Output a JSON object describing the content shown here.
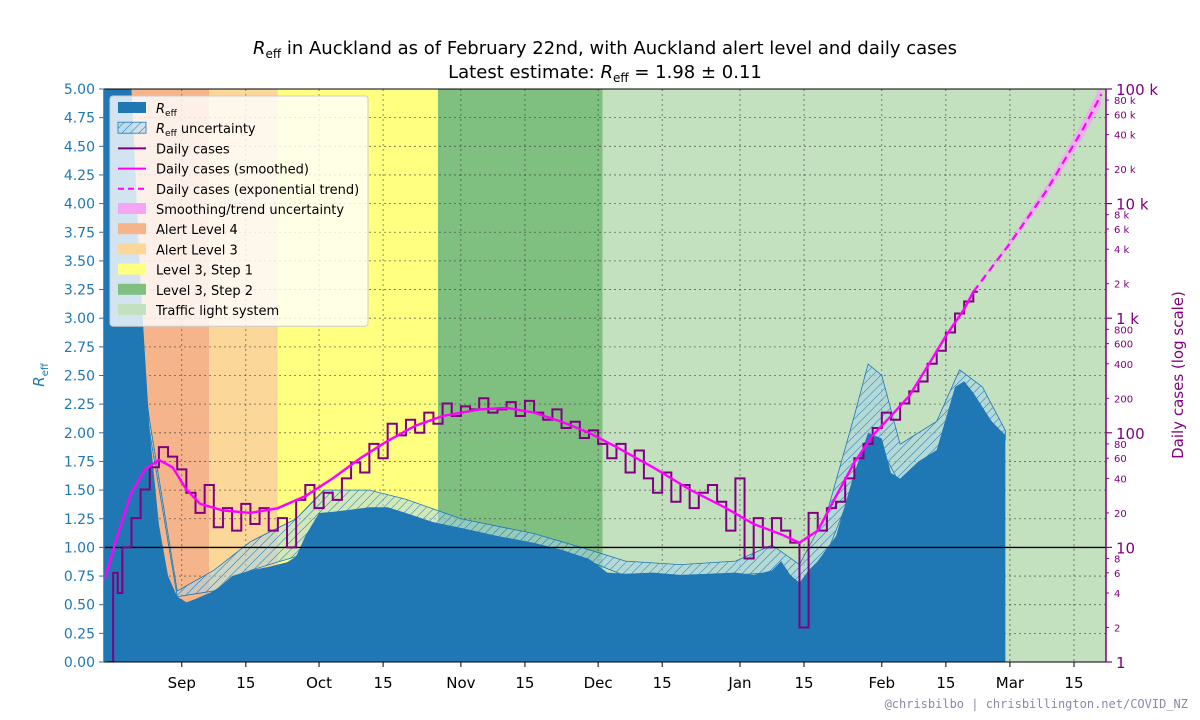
{
  "chart_data": {
    "type": "line",
    "title": {
      "line1_symbol": "R",
      "line1_sub": "eff",
      "line1_rest": " in Auckland as of February 22nd, with Auckland alert level and daily cases",
      "line2_prefix": "Latest estimate: ",
      "line2_symbol": "R",
      "line2_sub": "eff",
      "line2_value": " = 1.98 ± 0.11"
    },
    "ylabel_left": {
      "symbol": "R",
      "sub": "eff"
    },
    "ylabel_right": "Daily cases (log scale)",
    "credit": "@chrisbilbo | chrisbillington.net/COVID_NZ",
    "ylim_left": [
      0.0,
      5.0
    ],
    "ylim_right": [
      1,
      100000
    ],
    "y_scale_right": "log",
    "x_ticks": [
      {
        "label": "Sep",
        "day": 15
      },
      {
        "label": "15",
        "day": 29
      },
      {
        "label": "Oct",
        "day": 45
      },
      {
        "label": "15",
        "day": 59
      },
      {
        "label": "Nov",
        "day": 76
      },
      {
        "label": "15",
        "day": 90
      },
      {
        "label": "Dec",
        "day": 106
      },
      {
        "label": "15",
        "day": 120
      },
      {
        "label": "Jan",
        "day": 137
      },
      {
        "label": "15",
        "day": 151
      },
      {
        "label": "Feb",
        "day": 168
      },
      {
        "label": "15",
        "day": 182
      },
      {
        "label": "Mar",
        "day": 196
      },
      {
        "label": "15",
        "day": 210
      }
    ],
    "x_range_days": [
      -2,
      217
    ],
    "y_ticks_left": [
      "0.00",
      "0.25",
      "0.50",
      "0.75",
      "1.00",
      "1.25",
      "1.50",
      "1.75",
      "2.00",
      "2.25",
      "2.50",
      "2.75",
      "3.00",
      "3.25",
      "3.50",
      "3.75",
      "4.00",
      "4.25",
      "4.50",
      "4.75",
      "5.00"
    ],
    "y_ticks_right_major": [
      {
        "label": "1",
        "value": 1
      },
      {
        "label": "10",
        "value": 10
      },
      {
        "label": "100",
        "value": 100
      },
      {
        "label": "1 k",
        "value": 1000
      },
      {
        "label": "10 k",
        "value": 10000
      },
      {
        "label": "100 k",
        "value": 100000
      }
    ],
    "y_ticks_right_minor": [
      {
        "label": "2",
        "value": 2
      },
      {
        "label": "4",
        "value": 4
      },
      {
        "label": "6",
        "value": 6
      },
      {
        "label": "8",
        "value": 8
      },
      {
        "label": "20",
        "value": 20
      },
      {
        "label": "40",
        "value": 40
      },
      {
        "label": "60",
        "value": 60
      },
      {
        "label": "80",
        "value": 80
      },
      {
        "label": "200",
        "value": 200
      },
      {
        "label": "400",
        "value": 400
      },
      {
        "label": "600",
        "value": 600
      },
      {
        "label": "800",
        "value": 800
      },
      {
        "label": "2 k",
        "value": 2000
      },
      {
        "label": "4 k",
        "value": 4000
      },
      {
        "label": "6 k",
        "value": 6000
      },
      {
        "label": "8 k",
        "value": 8000
      },
      {
        "label": "20 k",
        "value": 20000
      },
      {
        "label": "40 k",
        "value": 40000
      },
      {
        "label": "60 k",
        "value": 60000
      },
      {
        "label": "80 k",
        "value": 80000
      }
    ],
    "alert_periods": [
      {
        "label": "Alert Level 4",
        "start": -2,
        "end": 21,
        "color": "#f5b48a"
      },
      {
        "label": "Alert Level 3",
        "start": 21,
        "end": 36,
        "color": "#fbd79a"
      },
      {
        "label": "Level 3, Step 1",
        "start": 36,
        "end": 71,
        "color": "#ffff80"
      },
      {
        "label": "Level 3, Step 2",
        "start": 71,
        "end": 107,
        "color": "#7fbf7f"
      },
      {
        "label": "Traffic light system",
        "start": 107,
        "end": 217,
        "color": "#c3e0bf"
      }
    ],
    "reff_points": [
      [
        -2,
        5.0
      ],
      [
        4,
        5.0
      ],
      [
        6,
        3.3
      ],
      [
        8,
        2.0
      ],
      [
        10,
        1.2
      ],
      [
        12,
        0.75
      ],
      [
        14,
        0.57
      ],
      [
        16,
        0.52
      ],
      [
        18,
        0.55
      ],
      [
        22,
        0.62
      ],
      [
        24,
        0.68
      ],
      [
        26,
        0.75
      ],
      [
        30,
        0.8
      ],
      [
        34,
        0.83
      ],
      [
        38,
        0.87
      ],
      [
        40,
        0.92
      ],
      [
        42,
        1.1
      ],
      [
        45,
        1.3
      ],
      [
        48,
        1.31
      ],
      [
        52,
        1.33
      ],
      [
        56,
        1.35
      ],
      [
        60,
        1.35
      ],
      [
        64,
        1.3
      ],
      [
        70,
        1.22
      ],
      [
        76,
        1.17
      ],
      [
        84,
        1.1
      ],
      [
        92,
        1.04
      ],
      [
        98,
        0.98
      ],
      [
        104,
        0.9
      ],
      [
        108,
        0.78
      ],
      [
        112,
        0.77
      ],
      [
        118,
        0.78
      ],
      [
        124,
        0.76
      ],
      [
        130,
        0.77
      ],
      [
        136,
        0.78
      ],
      [
        140,
        0.76
      ],
      [
        144,
        0.8
      ],
      [
        146,
        0.88
      ],
      [
        148,
        0.76
      ],
      [
        150,
        0.69
      ],
      [
        152,
        0.8
      ],
      [
        154,
        0.88
      ],
      [
        158,
        1.1
      ],
      [
        162,
        1.65
      ],
      [
        165,
        2.0
      ],
      [
        168,
        1.95
      ],
      [
        170,
        1.65
      ],
      [
        172,
        1.6
      ],
      [
        176,
        1.75
      ],
      [
        180,
        1.85
      ],
      [
        184,
        2.4
      ],
      [
        186,
        2.45
      ],
      [
        188,
        2.35
      ],
      [
        192,
        2.1
      ],
      [
        195,
        1.98
      ]
    ],
    "reff_uncertainty": [
      [
        -2,
        5.0,
        5.0
      ],
      [
        8,
        2.0,
        2.1
      ],
      [
        14,
        0.57,
        0.62
      ],
      [
        22,
        0.62,
        0.8
      ],
      [
        30,
        0.8,
        1.05
      ],
      [
        40,
        0.92,
        1.25
      ],
      [
        46,
        1.28,
        1.5
      ],
      [
        56,
        1.33,
        1.5
      ],
      [
        64,
        1.28,
        1.42
      ],
      [
        76,
        1.15,
        1.25
      ],
      [
        92,
        1.03,
        1.12
      ],
      [
        104,
        0.88,
        0.98
      ],
      [
        112,
        0.75,
        0.88
      ],
      [
        124,
        0.74,
        0.85
      ],
      [
        136,
        0.76,
        0.88
      ],
      [
        144,
        0.78,
        1.02
      ],
      [
        150,
        0.68,
        0.85
      ],
      [
        156,
        0.95,
        1.3
      ],
      [
        162,
        1.55,
        2.15
      ],
      [
        165,
        1.9,
        2.6
      ],
      [
        168,
        1.85,
        2.5
      ],
      [
        172,
        1.55,
        1.9
      ],
      [
        180,
        1.8,
        2.1
      ],
      [
        185,
        2.35,
        2.55
      ],
      [
        190,
        2.2,
        2.4
      ],
      [
        195,
        1.94,
        2.02
      ]
    ],
    "daily_cases_smoothed": [
      [
        -2,
        5
      ],
      [
        1,
        13
      ],
      [
        4,
        30
      ],
      [
        7,
        48
      ],
      [
        10,
        58
      ],
      [
        13,
        50
      ],
      [
        16,
        32
      ],
      [
        19,
        24
      ],
      [
        24,
        21
      ],
      [
        30,
        20
      ],
      [
        36,
        22
      ],
      [
        42,
        28
      ],
      [
        48,
        40
      ],
      [
        54,
        60
      ],
      [
        60,
        85
      ],
      [
        66,
        115
      ],
      [
        72,
        140
      ],
      [
        80,
        160
      ],
      [
        86,
        165
      ],
      [
        92,
        150
      ],
      [
        98,
        125
      ],
      [
        104,
        100
      ],
      [
        110,
        75
      ],
      [
        118,
        50
      ],
      [
        126,
        32
      ],
      [
        134,
        22
      ],
      [
        140,
        16
      ],
      [
        146,
        13
      ],
      [
        150,
        11
      ],
      [
        154,
        14
      ],
      [
        158,
        28
      ],
      [
        162,
        55
      ],
      [
        166,
        95
      ],
      [
        170,
        140
      ],
      [
        174,
        210
      ],
      [
        178,
        380
      ],
      [
        182,
        700
      ],
      [
        186,
        1200
      ],
      [
        188,
        1700
      ]
    ],
    "daily_cases_trend": [
      [
        188,
        1700
      ],
      [
        196,
        4500
      ],
      [
        204,
        13000
      ],
      [
        212,
        45000
      ],
      [
        216,
        90000
      ]
    ],
    "daily_cases_raw": [
      [
        -1,
        1
      ],
      [
        0,
        6
      ],
      [
        1,
        4
      ],
      [
        2,
        10
      ],
      [
        4,
        18
      ],
      [
        6,
        32
      ],
      [
        8,
        50
      ],
      [
        10,
        75
      ],
      [
        12,
        62
      ],
      [
        14,
        48
      ],
      [
        16,
        30
      ],
      [
        18,
        20
      ],
      [
        20,
        35
      ],
      [
        22,
        15
      ],
      [
        24,
        22
      ],
      [
        26,
        14
      ],
      [
        28,
        24
      ],
      [
        30,
        16
      ],
      [
        32,
        22
      ],
      [
        34,
        14
      ],
      [
        36,
        18
      ],
      [
        38,
        10
      ],
      [
        40,
        26
      ],
      [
        42,
        35
      ],
      [
        44,
        22
      ],
      [
        46,
        30
      ],
      [
        48,
        26
      ],
      [
        50,
        40
      ],
      [
        52,
        55
      ],
      [
        54,
        45
      ],
      [
        56,
        80
      ],
      [
        58,
        60
      ],
      [
        60,
        120
      ],
      [
        62,
        95
      ],
      [
        64,
        130
      ],
      [
        66,
        100
      ],
      [
        68,
        150
      ],
      [
        70,
        120
      ],
      [
        72,
        180
      ],
      [
        74,
        140
      ],
      [
        76,
        170
      ],
      [
        78,
        160
      ],
      [
        80,
        200
      ],
      [
        82,
        150
      ],
      [
        84,
        160
      ],
      [
        86,
        185
      ],
      [
        88,
        140
      ],
      [
        90,
        190
      ],
      [
        92,
        150
      ],
      [
        94,
        130
      ],
      [
        96,
        160
      ],
      [
        98,
        110
      ],
      [
        100,
        125
      ],
      [
        102,
        90
      ],
      [
        104,
        105
      ],
      [
        106,
        80
      ],
      [
        108,
        60
      ],
      [
        110,
        80
      ],
      [
        112,
        45
      ],
      [
        114,
        70
      ],
      [
        116,
        40
      ],
      [
        118,
        30
      ],
      [
        120,
        45
      ],
      [
        122,
        25
      ],
      [
        124,
        35
      ],
      [
        126,
        22
      ],
      [
        128,
        30
      ],
      [
        130,
        35
      ],
      [
        132,
        25
      ],
      [
        134,
        14
      ],
      [
        136,
        40
      ],
      [
        138,
        8
      ],
      [
        140,
        18
      ],
      [
        142,
        10
      ],
      [
        144,
        18
      ],
      [
        146,
        14
      ],
      [
        148,
        11
      ],
      [
        150,
        2
      ],
      [
        152,
        20
      ],
      [
        154,
        14
      ],
      [
        156,
        22
      ],
      [
        158,
        25
      ],
      [
        160,
        40
      ],
      [
        162,
        60
      ],
      [
        164,
        80
      ],
      [
        166,
        110
      ],
      [
        168,
        150
      ],
      [
        170,
        130
      ],
      [
        172,
        180
      ],
      [
        174,
        230
      ],
      [
        176,
        280
      ],
      [
        178,
        400
      ],
      [
        180,
        520
      ],
      [
        182,
        750
      ],
      [
        184,
        1100
      ],
      [
        186,
        1400
      ],
      [
        188,
        1700
      ]
    ],
    "legend": [
      {
        "symbol": "R",
        "sub": "eff",
        "text": "",
        "kind": "patch-solid",
        "color": "#1f77b4"
      },
      {
        "symbol": "R",
        "sub": "eff",
        "text": " uncertainty",
        "kind": "patch-hatch",
        "color": "#1f77b4"
      },
      {
        "text": "Daily cases",
        "kind": "line",
        "color": "#800080"
      },
      {
        "text": "Daily cases (smoothed)",
        "kind": "line",
        "color": "#ff00ff"
      },
      {
        "text": "Daily cases (exponential trend)",
        "kind": "dashed",
        "color": "#ff00ff"
      },
      {
        "text": "Smoothing/trend uncertainty",
        "kind": "patch-solid",
        "color": "#f4a6f4"
      },
      {
        "text": "Alert Level 4",
        "kind": "patch-solid",
        "color": "#f5b48a"
      },
      {
        "text": "Alert Level 3",
        "kind": "patch-solid",
        "color": "#fbd79a"
      },
      {
        "text": "Level 3, Step 1",
        "kind": "patch-solid",
        "color": "#ffff80"
      },
      {
        "text": "Level 3, Step 2",
        "kind": "patch-solid",
        "color": "#7fbf7f"
      },
      {
        "text": "Traffic light system",
        "kind": "patch-solid",
        "color": "#c3e0bf"
      }
    ],
    "grid": true,
    "legend_placement": "top-left",
    "colors": {
      "reff": "#1f77b4",
      "reff_tick": "#1f77b4",
      "cases_raw": "#800080",
      "cases_smoothed": "#ff00ff",
      "cases_axis": "#800080",
      "unity_line": "#000000"
    }
  }
}
